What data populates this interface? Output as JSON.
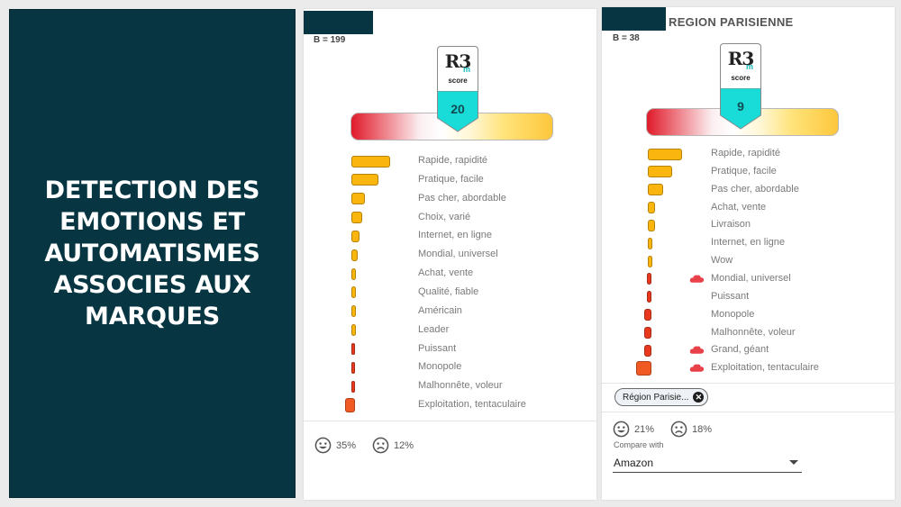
{
  "title_panel": {
    "lines": [
      "DETECTION DES",
      "EMOTIONS ET",
      "AUTOMATISMES",
      "ASSOCIES AUX",
      "MARQUES"
    ]
  },
  "cards": [
    {
      "heading": "",
      "base": "B = 199",
      "badge": {
        "logo_text": "R3",
        "logo_sub": "m",
        "logo_caption": "score",
        "score": "20"
      },
      "rows": [
        {
          "label": "Rapide, rapidité",
          "sentiment": "positive",
          "value": 0.65,
          "cloud": false
        },
        {
          "label": "Pratique, facile",
          "sentiment": "positive",
          "value": 0.45,
          "cloud": false
        },
        {
          "label": "Pas cher, abordable",
          "sentiment": "positive",
          "value": 0.22,
          "cloud": false
        },
        {
          "label": "Choix, varié",
          "sentiment": "positive",
          "value": 0.18,
          "cloud": false
        },
        {
          "label": "Internet, en ligne",
          "sentiment": "positive",
          "value": 0.13,
          "cloud": false
        },
        {
          "label": "Mondial, universel",
          "sentiment": "positive",
          "value": 0.11,
          "cloud": false
        },
        {
          "label": "Achat, vente",
          "sentiment": "positive",
          "value": 0.08,
          "cloud": false
        },
        {
          "label": "Qualité, fiable",
          "sentiment": "positive",
          "value": 0.08,
          "cloud": false
        },
        {
          "label": "Américain",
          "sentiment": "positive",
          "value": 0.07,
          "cloud": false
        },
        {
          "label": "Leader",
          "sentiment": "positive",
          "value": 0.07,
          "cloud": false
        },
        {
          "label": "Puissant",
          "sentiment": "negative",
          "value": -0.05,
          "cloud": false
        },
        {
          "label": "Monopole",
          "sentiment": "negative",
          "value": -0.05,
          "cloud": false
        },
        {
          "label": "Malhonnête, voleur",
          "sentiment": "negative",
          "value": -0.05,
          "cloud": false
        },
        {
          "label": "Exploitation, tentaculaire",
          "sentiment": "negative",
          "value": -0.16,
          "cloud": false
        }
      ],
      "smile_pct": "35%",
      "frown_pct": "12%"
    },
    {
      "heading": "REGION PARISIENNE",
      "base": "B = 38",
      "badge": {
        "logo_text": "R3",
        "logo_sub": "m",
        "logo_caption": "score",
        "score": "9"
      },
      "rows": [
        {
          "label": "Rapide, rapidité",
          "sentiment": "positive",
          "value": 0.59,
          "cloud": false
        },
        {
          "label": "Pratique, facile",
          "sentiment": "positive",
          "value": 0.42,
          "cloud": false
        },
        {
          "label": "Pas cher, abordable",
          "sentiment": "positive",
          "value": 0.27,
          "cloud": false
        },
        {
          "label": "Achat, vente",
          "sentiment": "positive",
          "value": 0.12,
          "cloud": false
        },
        {
          "label": "Livraison",
          "sentiment": "positive",
          "value": 0.12,
          "cloud": false
        },
        {
          "label": "Internet, en ligne",
          "sentiment": "positive",
          "value": 0.08,
          "cloud": false
        },
        {
          "label": "Wow",
          "sentiment": "positive",
          "value": 0.08,
          "cloud": false
        },
        {
          "label": "Mondial, universel",
          "sentiment": "negative",
          "value": -0.08,
          "cloud": true
        },
        {
          "label": "Puissant",
          "sentiment": "negative",
          "value": -0.08,
          "cloud": false
        },
        {
          "label": "Monopole",
          "sentiment": "negative",
          "value": -0.12,
          "cloud": false
        },
        {
          "label": "Malhonnête, voleur",
          "sentiment": "negative",
          "value": -0.12,
          "cloud": false
        },
        {
          "label": "Grand, géant",
          "sentiment": "negative",
          "value": -0.12,
          "cloud": true
        },
        {
          "label": "Exploitation, tentaculaire",
          "sentiment": "negative",
          "value": -0.27,
          "cloud": true
        }
      ],
      "filter_chip": "Région Parisie...",
      "smile_pct": "21%",
      "frown_pct": "18%",
      "compare_label": "Compare with",
      "compare_value": "Amazon"
    }
  ],
  "colors": {
    "panel": "#073642",
    "positive_bar": "#fbb50f",
    "negative_bar": "#e8381e",
    "badge_accent": "#19dcd9"
  },
  "icons": {
    "badge_logo": "r3m-score-logo",
    "cloud": "red-cloud-icon",
    "smile": "smiley-face-icon",
    "frown": "frowny-face-icon",
    "chip_remove": "close-circle-icon",
    "dropdown": "caret-down-icon"
  }
}
